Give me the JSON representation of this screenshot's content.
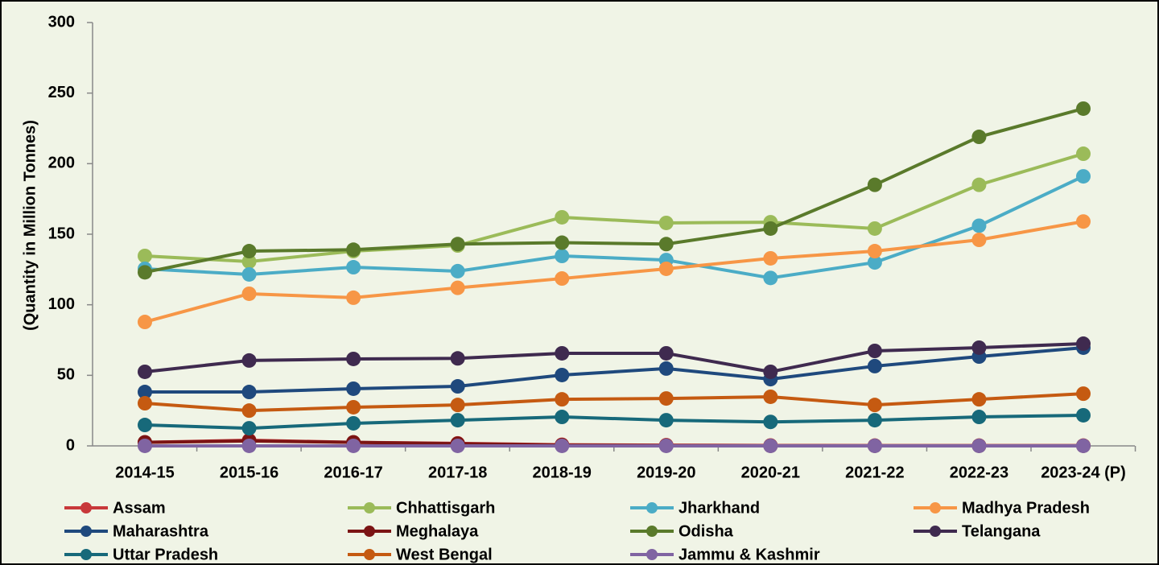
{
  "chart_data": {
    "type": "line",
    "y_label": "(Quantity in Million Tonnes)",
    "categories": [
      "2014-15",
      "2015-16",
      "2016-17",
      "2017-18",
      "2018-19",
      "2019-20",
      "2020-21",
      "2021-22",
      "2022-23",
      "2023-24 (P)"
    ],
    "ylim": [
      0,
      300
    ],
    "yticks": [
      0,
      50,
      100,
      150,
      200,
      250,
      300
    ],
    "legend": "bottom",
    "series": [
      {
        "name": "Assam",
        "color": "#c8383a",
        "values": [
          2.5,
          4,
          2.5,
          1.8,
          0.8,
          0.5,
          0.3,
          0.2,
          0.2,
          0.2
        ]
      },
      {
        "name": "Chhattisgarh",
        "color": "#9bbb59",
        "values": [
          134.6,
          130.6,
          138,
          142,
          162,
          158,
          158.5,
          154,
          185,
          207
        ]
      },
      {
        "name": "Jharkhand",
        "color": "#4bacc6",
        "values": [
          125.5,
          121.5,
          126.6,
          123.8,
          134.6,
          131.7,
          119,
          130,
          156,
          191
        ]
      },
      {
        "name": "Madhya Pradesh",
        "color": "#f79646",
        "values": [
          87.8,
          107.8,
          105,
          112,
          118.6,
          125.5,
          132.9,
          138,
          146,
          159
        ]
      },
      {
        "name": "Maharashtra",
        "color": "#1f497d",
        "values": [
          38.2,
          38.2,
          40.5,
          42.2,
          50.2,
          54.8,
          47.3,
          56.5,
          63.3,
          69.6
        ]
      },
      {
        "name": "Meghalaya",
        "color": "#7b1414",
        "values": [
          2.5,
          3.5,
          2.5,
          1.6,
          0.5,
          0.2,
          0.1,
          0.1,
          0.1,
          0.1
        ]
      },
      {
        "name": "Odisha",
        "color": "#5a7a2b",
        "values": [
          123,
          138,
          139,
          143,
          144,
          143,
          154,
          185,
          219,
          239
        ]
      },
      {
        "name": "Telangana",
        "color": "#3f2a4f",
        "values": [
          52.5,
          60.5,
          61.6,
          62,
          65.6,
          65.6,
          52.5,
          67.3,
          69.6,
          72.4
        ]
      },
      {
        "name": "Uttar Pradesh",
        "color": "#17697a",
        "values": [
          14.8,
          12.5,
          16,
          18.2,
          20.5,
          18.2,
          17,
          18.2,
          20.5,
          21.7
        ]
      },
      {
        "name": "West Bengal",
        "color": "#c55a11",
        "values": [
          30.2,
          25,
          27.4,
          29,
          33,
          33.6,
          34.8,
          29,
          33,
          37
        ]
      },
      {
        "name": "Jammu & Kashmir",
        "color": "#8064a2",
        "values": [
          0.02,
          0.02,
          0.02,
          0.02,
          0.02,
          0.02,
          0.02,
          0.02,
          0.02,
          0.02
        ]
      }
    ]
  }
}
